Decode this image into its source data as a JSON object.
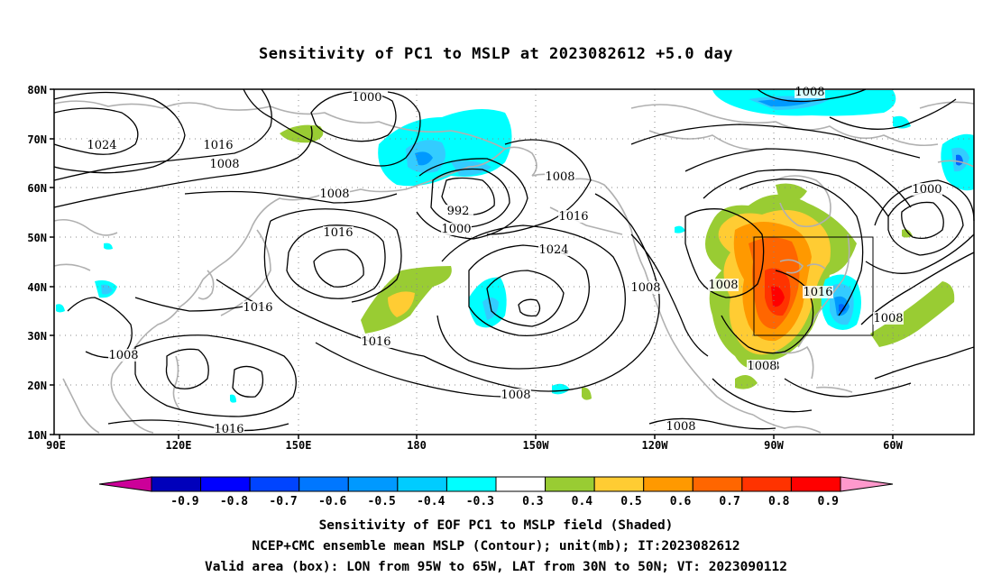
{
  "title": "Sensitivity of PC1 to MSLP at 2023082612 +5.0 day",
  "map": {
    "lat_labels": [
      "80N",
      "70N",
      "60N",
      "50N",
      "40N",
      "30N",
      "20N",
      "10N"
    ],
    "lon_labels": [
      "90E",
      "120E",
      "150E",
      "180",
      "150W",
      "120W",
      "90W",
      "60W"
    ],
    "region_box": {
      "lon_west": "95W",
      "lon_east": "65W",
      "lat_south": "30N",
      "lat_north": "50N"
    },
    "contour_labels": [
      {
        "text": "1000"
      },
      {
        "text": "1008"
      },
      {
        "text": "1024"
      },
      {
        "text": "1016"
      },
      {
        "text": "1008"
      },
      {
        "text": "1008"
      },
      {
        "text": "992"
      },
      {
        "text": "1000"
      },
      {
        "text": "1008"
      },
      {
        "text": "1016"
      },
      {
        "text": "1016"
      },
      {
        "text": "1024"
      },
      {
        "text": "1016"
      },
      {
        "text": "1016"
      },
      {
        "text": "1008"
      },
      {
        "text": "1008"
      },
      {
        "text": "1016"
      },
      {
        "text": "1008"
      },
      {
        "text": "1008"
      },
      {
        "text": "1008"
      },
      {
        "text": "1000"
      },
      {
        "text": "1008"
      },
      {
        "text": "1016"
      },
      {
        "text": "1008"
      },
      {
        "text": "1008"
      }
    ],
    "colors": {
      "positive": [
        "#99cc33",
        "#ffcc33",
        "#ff9900",
        "#ff6600",
        "#ff3300",
        "#ff0000"
      ],
      "negative": [
        "#00ffff",
        "#33ccff",
        "#0099ff",
        "#0066ff",
        "#0033ff",
        "#0000cc"
      ],
      "land_outline": "#b0b0b0",
      "contour": "#000000"
    }
  },
  "colorbar": {
    "labels": [
      "-0.9",
      "-0.8",
      "-0.7",
      "-0.6",
      "-0.5",
      "-0.4",
      "-0.3",
      "0.3",
      "0.4",
      "0.5",
      "0.6",
      "0.7",
      "0.8",
      "0.9"
    ],
    "colors": [
      "#0000bb",
      "#0000ff",
      "#0044ff",
      "#0077ff",
      "#0099ff",
      "#00ccff",
      "#00ffff",
      "#ffffff",
      "#99cc33",
      "#ffcc33",
      "#ff9900",
      "#ff6600",
      "#ff3300",
      "#ff0000"
    ],
    "low_end_color": "#cc0099",
    "high_end_color": "#ff99cc"
  },
  "footer": {
    "line1": "Sensitivity of EOF PC1 to MSLP field (Shaded)",
    "line2": "NCEP+CMC ensemble mean MSLP (Contour); unit(mb); IT:2023082612",
    "line3": "Valid area (box): LON from 95W to 65W, LAT from 30N to 50N; VT: 2023090112"
  }
}
